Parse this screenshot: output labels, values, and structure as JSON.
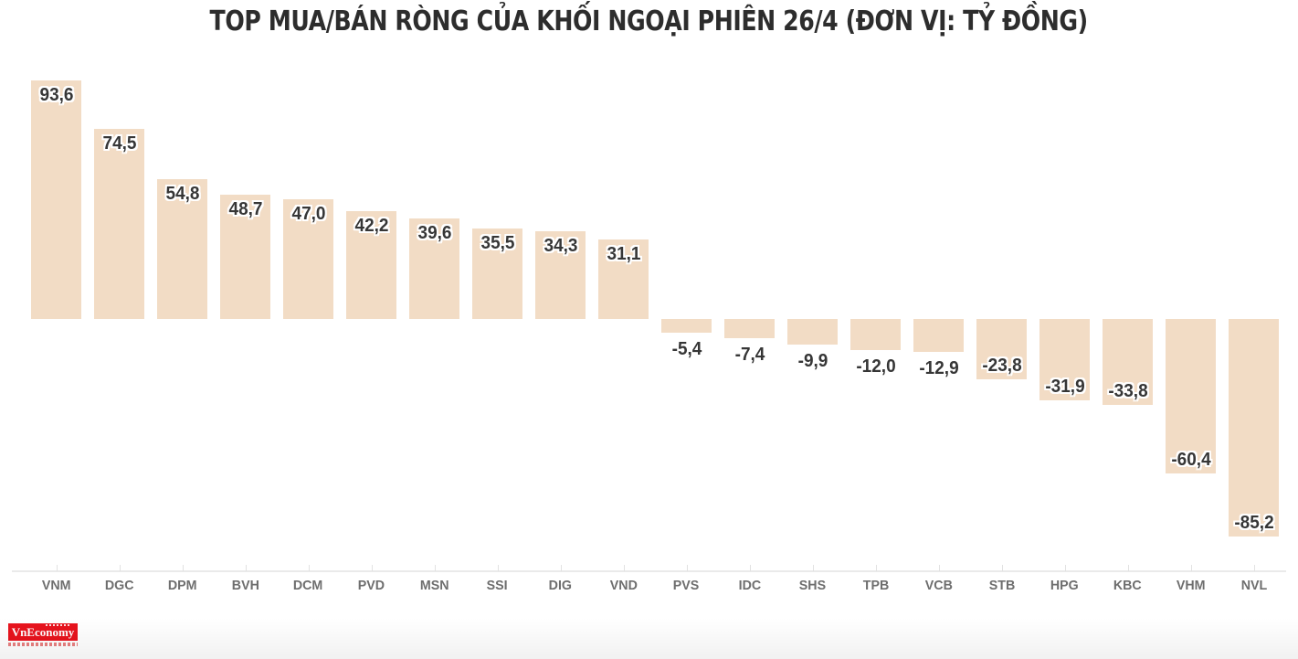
{
  "header": {
    "title": "TOP MUA/BÁN RÒNG CỦA KHỐI NGOẠI PHIÊN 26/4 (ĐƠN VỊ: TỶ ĐỒNG)"
  },
  "chart_data": {
    "type": "bar",
    "title": "TOP MUA/BÁN RÒNG CỦA KHỐI NGOẠI PHIÊN 26/4 (ĐƠN VỊ: TỶ ĐỒNG)",
    "categories": [
      "VNM",
      "DGC",
      "DPM",
      "BVH",
      "DCM",
      "PVD",
      "MSN",
      "SSI",
      "DIG",
      "VND",
      "PVS",
      "IDC",
      "SHS",
      "TPB",
      "VCB",
      "STB",
      "HPG",
      "KBC",
      "VHM",
      "NVL"
    ],
    "values": [
      93.6,
      74.5,
      54.8,
      48.7,
      47.0,
      42.2,
      39.6,
      35.5,
      34.3,
      31.1,
      -5.4,
      -7.4,
      -9.9,
      -12.0,
      -12.9,
      -23.8,
      -31.9,
      -33.8,
      -60.4,
      -85.2
    ],
    "value_labels": [
      "93,6",
      "74,5",
      "54,8",
      "48,7",
      "47,0",
      "42,2",
      "39,6",
      "35,5",
      "34,3",
      "31,1",
      "-5,4",
      "-7,4",
      "-9,9",
      "-12,0",
      "-12,9",
      "-23,8",
      "-31,9",
      "-33,8",
      "-60,4",
      "-85,2"
    ],
    "xlabel": "",
    "ylabel": "",
    "ylim": [
      -95,
      105
    ],
    "grid": false,
    "legend": false,
    "bar_color": "#f2dcc5",
    "value_label_color": "#363636",
    "axis_label_color": "#6e6e6e",
    "axis_line_color": "#eaeaea"
  },
  "footer": {
    "logo_text": "VnEconomy",
    "logo_color": "#e8131d"
  }
}
